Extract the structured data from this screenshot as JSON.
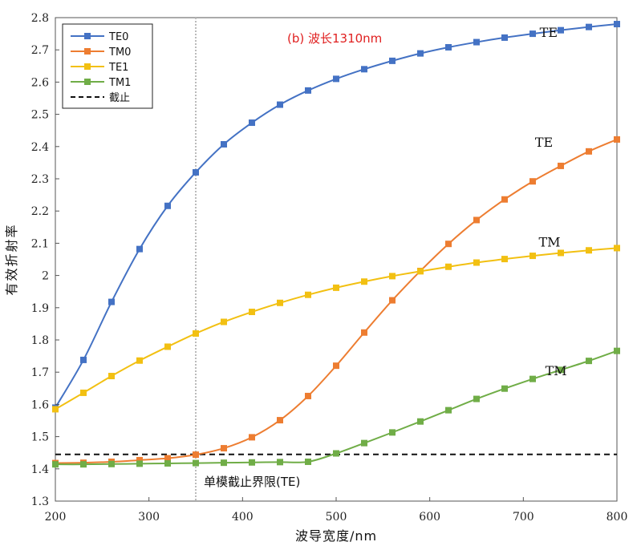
{
  "chart_data": {
    "type": "line",
    "title": "(b) 波长1310nm",
    "title_color": "#e02020",
    "xlabel": "波导宽度/nm",
    "ylabel": "有效折射率",
    "xlim": [
      200,
      800
    ],
    "ylim": [
      1.3,
      2.8
    ],
    "xticks": [
      200,
      300,
      400,
      500,
      600,
      700,
      800
    ],
    "yticks": [
      1.3,
      1.4,
      1.5,
      1.6,
      1.7,
      1.8,
      1.9,
      2.0,
      2.1,
      2.2,
      2.3,
      2.4,
      2.5,
      2.6,
      2.7,
      2.8
    ],
    "ytick_labels": [
      "1.3",
      "1.4",
      "1.5",
      "1.6",
      "1.7",
      "1.8",
      "1.9",
      "2",
      "2.1",
      "2.2",
      "2.3",
      "2.4",
      "2.5",
      "2.6",
      "2.7",
      "2.8"
    ],
    "legend_position": "top-left",
    "grid": false,
    "series": [
      {
        "name": "TE0",
        "color": "#4472c4",
        "x": [
          200,
          230,
          260,
          290,
          320,
          350,
          380,
          410,
          440,
          470,
          500,
          530,
          560,
          590,
          620,
          650,
          680,
          710,
          740,
          770,
          800
        ],
        "y": [
          1.59,
          1.738,
          1.918,
          2.082,
          2.216,
          2.32,
          2.407,
          2.474,
          2.53,
          2.574,
          2.61,
          2.64,
          2.666,
          2.689,
          2.708,
          2.724,
          2.738,
          2.75,
          2.761,
          2.771,
          2.78
        ]
      },
      {
        "name": "TM0",
        "color": "#ed7d31",
        "x": [
          200,
          230,
          260,
          290,
          320,
          350,
          380,
          410,
          440,
          470,
          500,
          530,
          560,
          590,
          620,
          650,
          680,
          710,
          740,
          770,
          800
        ],
        "y": [
          1.418,
          1.419,
          1.422,
          1.427,
          1.433,
          1.444,
          1.464,
          1.498,
          1.551,
          1.626,
          1.72,
          1.823,
          1.923,
          2.014,
          2.098,
          2.172,
          2.236,
          2.292,
          2.34,
          2.385,
          2.422
        ]
      },
      {
        "name": "TE1",
        "color": "#f2c012",
        "x": [
          200,
          230,
          260,
          290,
          320,
          350,
          380,
          410,
          440,
          470,
          500,
          530,
          560,
          590,
          620,
          650,
          680,
          710,
          740,
          770,
          800
        ],
        "y": [
          1.585,
          1.636,
          1.688,
          1.736,
          1.779,
          1.82,
          1.856,
          1.887,
          1.915,
          1.94,
          1.962,
          1.981,
          1.998,
          2.013,
          2.027,
          2.04,
          2.051,
          2.061,
          2.07,
          2.078,
          2.085
        ]
      },
      {
        "name": "TM1",
        "color": "#70ad47",
        "x": [
          200,
          230,
          260,
          290,
          320,
          350,
          380,
          410,
          440,
          470,
          500,
          530,
          560,
          590,
          620,
          650,
          680,
          710,
          740,
          770,
          800
        ],
        "y": [
          1.414,
          1.414,
          1.415,
          1.416,
          1.417,
          1.418,
          1.419,
          1.42,
          1.421,
          1.422,
          1.448,
          1.48,
          1.513,
          1.547,
          1.582,
          1.617,
          1.649,
          1.679,
          1.707,
          1.735,
          1.766
        ]
      }
    ],
    "cutoff_line": {
      "name": "截止",
      "y": 1.445,
      "color": "#111111"
    },
    "single_mode_boundary": {
      "x": 350,
      "label": "单模截止界限(TE)",
      "color": "#bbbbbb"
    },
    "annotations": [
      {
        "text": "TE",
        "x": 727,
        "y": 2.755
      },
      {
        "text": "TE",
        "x": 722,
        "y": 2.415
      },
      {
        "text": "TM",
        "x": 728,
        "y": 2.105
      },
      {
        "text": "TM",
        "x": 735,
        "y": 1.705
      }
    ]
  }
}
